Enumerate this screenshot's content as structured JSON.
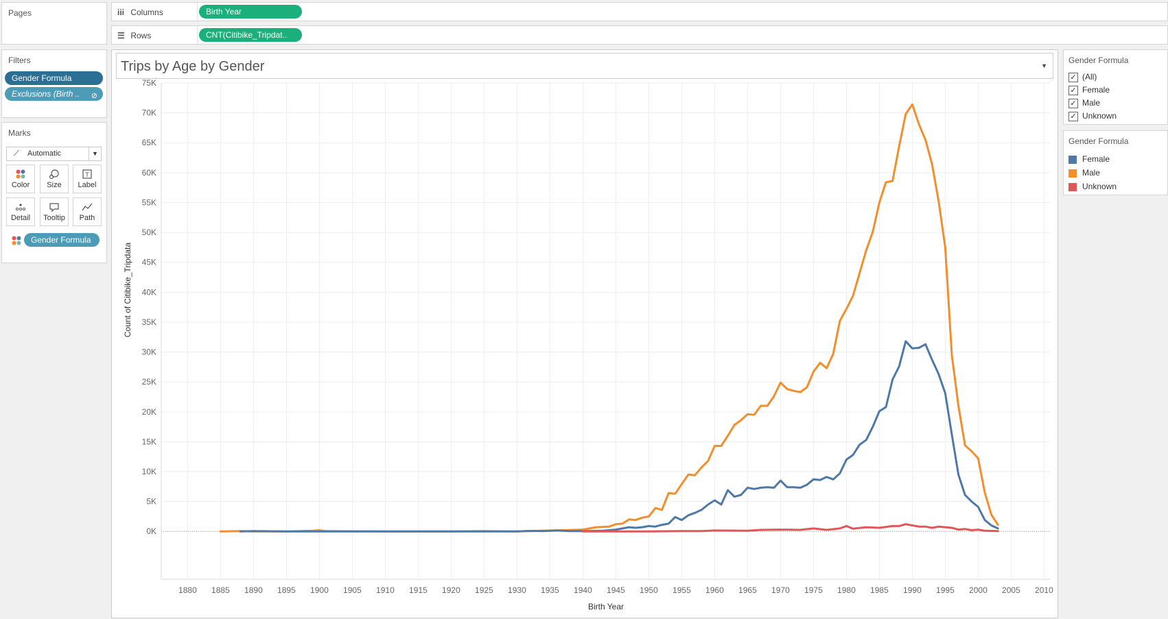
{
  "pages": {
    "title": "Pages"
  },
  "shelves": {
    "columns": {
      "label": "Columns",
      "icon": "iii",
      "pill": "Birth Year"
    },
    "rows": {
      "label": "Rows",
      "icon": "☰",
      "pill": "CNT(Citibike_Tripdat.."
    }
  },
  "filters": {
    "title": "Filters",
    "items": [
      "Gender Formula",
      "Exclusions (Birth .."
    ]
  },
  "marks": {
    "title": "Marks",
    "type": "Automatic",
    "buttons": [
      {
        "label": "Color",
        "icon": "color-icon"
      },
      {
        "label": "Size",
        "icon": "size-icon"
      },
      {
        "label": "Label",
        "icon": "label-icon"
      },
      {
        "label": "Detail",
        "icon": "detail-icon"
      },
      {
        "label": "Tooltip",
        "icon": "tooltip-icon"
      },
      {
        "label": "Path",
        "icon": "path-icon"
      }
    ],
    "color_pill": "Gender Formula"
  },
  "viz": {
    "title": "Trips by Age by Gender"
  },
  "gender_filter": {
    "title": "Gender Formula",
    "options": [
      {
        "label": "(All)",
        "checked": true
      },
      {
        "label": "Female",
        "checked": true
      },
      {
        "label": "Male",
        "checked": true
      },
      {
        "label": "Unknown",
        "checked": true
      }
    ]
  },
  "gender_legend": {
    "title": "Gender Formula",
    "items": [
      {
        "label": "Female",
        "color": "#4e79a7"
      },
      {
        "label": "Male",
        "color": "#f28e2b"
      },
      {
        "label": "Unknown",
        "color": "#e15759"
      }
    ]
  },
  "chart_data": {
    "type": "line",
    "title": "Trips by Age by Gender",
    "xlabel": "Birth Year",
    "ylabel": "Count of Citibike_Tripdata",
    "xlim": [
      1876,
      2011
    ],
    "ylim": [
      -8000,
      75000
    ],
    "x_ticks": [
      1880,
      1885,
      1890,
      1895,
      1900,
      1905,
      1910,
      1915,
      1920,
      1925,
      1930,
      1935,
      1940,
      1945,
      1950,
      1955,
      1960,
      1965,
      1970,
      1975,
      1980,
      1985,
      1990,
      1995,
      2000,
      2005,
      2010
    ],
    "y_ticks": [
      0,
      5000,
      10000,
      15000,
      20000,
      25000,
      30000,
      35000,
      40000,
      45000,
      50000,
      55000,
      60000,
      65000,
      70000,
      75000
    ],
    "y_tick_labels": [
      "0K",
      "5K",
      "10K",
      "15K",
      "20K",
      "25K",
      "30K",
      "35K",
      "40K",
      "45K",
      "50K",
      "55K",
      "60K",
      "65K",
      "70K",
      "75K"
    ],
    "grid": true,
    "legend": "right",
    "series": [
      {
        "name": "Male",
        "color": "#f28e2b",
        "points": [
          [
            1885,
            0
          ],
          [
            1888,
            50
          ],
          [
            1890,
            0
          ],
          [
            1895,
            0
          ],
          [
            1899,
            100
          ],
          [
            1900,
            200
          ],
          [
            1901,
            50
          ],
          [
            1910,
            0
          ],
          [
            1920,
            0
          ],
          [
            1925,
            50
          ],
          [
            1930,
            0
          ],
          [
            1935,
            150
          ],
          [
            1937,
            200
          ],
          [
            1940,
            300
          ],
          [
            1941,
            500
          ],
          [
            1942,
            700
          ],
          [
            1944,
            800
          ],
          [
            1945,
            1200
          ],
          [
            1946,
            1300
          ],
          [
            1947,
            2000
          ],
          [
            1948,
            1900
          ],
          [
            1949,
            2300
          ],
          [
            1950,
            2500
          ],
          [
            1951,
            3900
          ],
          [
            1952,
            3600
          ],
          [
            1953,
            6400
          ],
          [
            1954,
            6300
          ],
          [
            1955,
            7900
          ],
          [
            1956,
            9500
          ],
          [
            1957,
            9400
          ],
          [
            1958,
            10700
          ],
          [
            1959,
            11800
          ],
          [
            1960,
            14300
          ],
          [
            1961,
            14300
          ],
          [
            1962,
            16000
          ],
          [
            1963,
            17800
          ],
          [
            1964,
            18600
          ],
          [
            1965,
            19600
          ],
          [
            1966,
            19500
          ],
          [
            1967,
            21000
          ],
          [
            1968,
            21000
          ],
          [
            1969,
            22600
          ],
          [
            1970,
            24900
          ],
          [
            1971,
            23800
          ],
          [
            1972,
            23500
          ],
          [
            1973,
            23300
          ],
          [
            1974,
            24100
          ],
          [
            1975,
            26700
          ],
          [
            1976,
            28200
          ],
          [
            1977,
            27300
          ],
          [
            1978,
            29700
          ],
          [
            1979,
            35200
          ],
          [
            1980,
            37200
          ],
          [
            1981,
            39400
          ],
          [
            1982,
            43200
          ],
          [
            1983,
            47000
          ],
          [
            1984,
            50100
          ],
          [
            1985,
            55000
          ],
          [
            1986,
            58400
          ],
          [
            1987,
            58600
          ],
          [
            1988,
            64400
          ],
          [
            1989,
            69800
          ],
          [
            1990,
            71400
          ],
          [
            1991,
            68100
          ],
          [
            1992,
            65500
          ],
          [
            1993,
            61400
          ],
          [
            1994,
            55200
          ],
          [
            1995,
            47500
          ],
          [
            1996,
            29500
          ],
          [
            1997,
            21000
          ],
          [
            1998,
            14400
          ],
          [
            1999,
            13400
          ],
          [
            2000,
            12200
          ],
          [
            2001,
            6500
          ],
          [
            2002,
            2800
          ],
          [
            2003,
            1100
          ]
        ]
      },
      {
        "name": "Female",
        "color": "#4e79a7",
        "points": [
          [
            1888,
            0
          ],
          [
            1890,
            50
          ],
          [
            1895,
            0
          ],
          [
            1900,
            0
          ],
          [
            1910,
            0
          ],
          [
            1920,
            0
          ],
          [
            1930,
            0
          ],
          [
            1932,
            80
          ],
          [
            1934,
            50
          ],
          [
            1936,
            150
          ],
          [
            1938,
            50
          ],
          [
            1940,
            50
          ],
          [
            1943,
            100
          ],
          [
            1944,
            200
          ],
          [
            1945,
            300
          ],
          [
            1946,
            500
          ],
          [
            1947,
            700
          ],
          [
            1948,
            600
          ],
          [
            1949,
            700
          ],
          [
            1950,
            900
          ],
          [
            1951,
            800
          ],
          [
            1952,
            1100
          ],
          [
            1953,
            1300
          ],
          [
            1954,
            2400
          ],
          [
            1955,
            1900
          ],
          [
            1956,
            2700
          ],
          [
            1957,
            3100
          ],
          [
            1958,
            3600
          ],
          [
            1959,
            4500
          ],
          [
            1960,
            5200
          ],
          [
            1961,
            4500
          ],
          [
            1962,
            6900
          ],
          [
            1963,
            5800
          ],
          [
            1964,
            6100
          ],
          [
            1965,
            7300
          ],
          [
            1966,
            7100
          ],
          [
            1967,
            7300
          ],
          [
            1968,
            7400
          ],
          [
            1969,
            7300
          ],
          [
            1970,
            8500
          ],
          [
            1971,
            7400
          ],
          [
            1972,
            7400
          ],
          [
            1973,
            7300
          ],
          [
            1974,
            7800
          ],
          [
            1975,
            8700
          ],
          [
            1976,
            8600
          ],
          [
            1977,
            9100
          ],
          [
            1978,
            8700
          ],
          [
            1979,
            9700
          ],
          [
            1980,
            12000
          ],
          [
            1981,
            12800
          ],
          [
            1982,
            14500
          ],
          [
            1983,
            15300
          ],
          [
            1984,
            17500
          ],
          [
            1985,
            20100
          ],
          [
            1986,
            20800
          ],
          [
            1987,
            25400
          ],
          [
            1988,
            27600
          ],
          [
            1989,
            31800
          ],
          [
            1990,
            30600
          ],
          [
            1991,
            30700
          ],
          [
            1992,
            31300
          ],
          [
            1993,
            28700
          ],
          [
            1994,
            26300
          ],
          [
            1995,
            23100
          ],
          [
            1996,
            16200
          ],
          [
            1997,
            9500
          ],
          [
            1998,
            6100
          ],
          [
            1999,
            5000
          ],
          [
            2000,
            4100
          ],
          [
            2001,
            1900
          ],
          [
            2002,
            1000
          ],
          [
            2003,
            500
          ]
        ]
      },
      {
        "name": "Unknown",
        "color": "#e15759",
        "points": [
          [
            1940,
            0
          ],
          [
            1950,
            0
          ],
          [
            1955,
            50
          ],
          [
            1958,
            50
          ],
          [
            1960,
            150
          ],
          [
            1965,
            100
          ],
          [
            1967,
            250
          ],
          [
            1970,
            300
          ],
          [
            1973,
            250
          ],
          [
            1975,
            500
          ],
          [
            1977,
            250
          ],
          [
            1979,
            500
          ],
          [
            1980,
            900
          ],
          [
            1981,
            450
          ],
          [
            1983,
            700
          ],
          [
            1985,
            600
          ],
          [
            1987,
            900
          ],
          [
            1988,
            900
          ],
          [
            1989,
            1200
          ],
          [
            1990,
            1000
          ],
          [
            1991,
            800
          ],
          [
            1992,
            800
          ],
          [
            1993,
            600
          ],
          [
            1994,
            800
          ],
          [
            1995,
            700
          ],
          [
            1996,
            600
          ],
          [
            1997,
            300
          ],
          [
            1998,
            400
          ],
          [
            1999,
            200
          ],
          [
            2000,
            300
          ],
          [
            2001,
            100
          ],
          [
            2003,
            50
          ]
        ]
      }
    ]
  }
}
